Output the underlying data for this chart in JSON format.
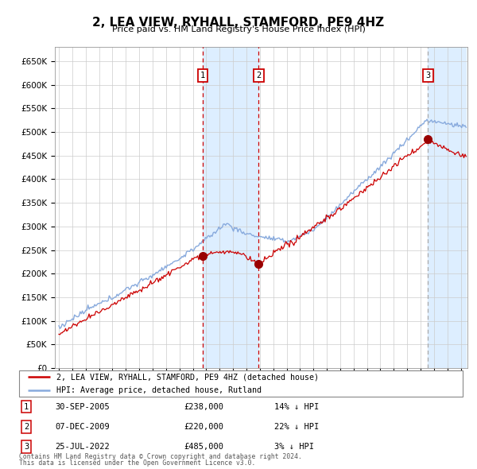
{
  "title": "2, LEA VIEW, RYHALL, STAMFORD, PE9 4HZ",
  "subtitle": "Price paid vs. HM Land Registry's House Price Index (HPI)",
  "yticks": [
    0,
    50000,
    100000,
    150000,
    200000,
    250000,
    300000,
    350000,
    400000,
    450000,
    500000,
    550000,
    600000,
    650000
  ],
  "xlim_start": 1994.7,
  "xlim_end": 2025.5,
  "ylim": [
    0,
    680000
  ],
  "transactions": [
    {
      "num": 1,
      "date_float": 2005.75,
      "price": 238000,
      "label": "30-SEP-2005",
      "pct": "14%",
      "dir": "↓"
    },
    {
      "num": 2,
      "date_float": 2009.92,
      "price": 220000,
      "label": "07-DEC-2009",
      "pct": "22%",
      "dir": "↓"
    },
    {
      "num": 3,
      "date_float": 2022.56,
      "price": 485000,
      "label": "25-JUL-2022",
      "pct": "3%",
      "dir": "↓"
    }
  ],
  "legend_line1": "2, LEA VIEW, RYHALL, STAMFORD, PE9 4HZ (detached house)",
  "legend_line2": "HPI: Average price, detached house, Rutland",
  "footnote1": "Contains HM Land Registry data © Crown copyright and database right 2024.",
  "footnote2": "This data is licensed under the Open Government Licence v3.0.",
  "red_color": "#cc0000",
  "blue_color": "#88aadd",
  "shade_color": "#ddeeff",
  "grid_color": "#cccccc",
  "background_color": "#ffffff",
  "vline_colors": [
    "#cc0000",
    "#cc0000",
    "#aaaaaa"
  ]
}
